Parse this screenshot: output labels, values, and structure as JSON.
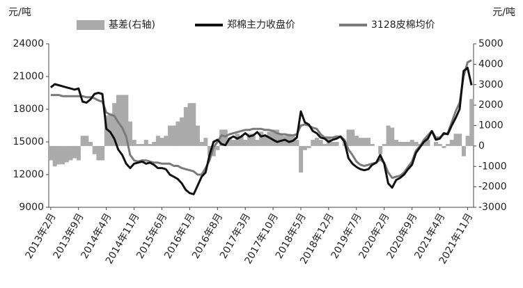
{
  "chart_data": {
    "type": "combo",
    "y_label": "元/吨",
    "y2_label": "元/吨",
    "categories": [
      "2013年2月",
      null,
      null,
      null,
      null,
      null,
      null,
      "2013年9月",
      null,
      null,
      null,
      null,
      null,
      null,
      "2014年4月",
      null,
      null,
      null,
      null,
      null,
      null,
      "2014年11月",
      null,
      null,
      null,
      null,
      null,
      null,
      "2015年6月",
      null,
      null,
      null,
      null,
      null,
      null,
      "2016年1月",
      null,
      null,
      null,
      null,
      null,
      null,
      "2016年8月",
      null,
      null,
      null,
      null,
      null,
      null,
      "2017年3月",
      null,
      null,
      null,
      null,
      null,
      null,
      "2017年10月",
      null,
      null,
      null,
      null,
      null,
      null,
      "2018年5月",
      null,
      null,
      null,
      null,
      null,
      null,
      "2018年12月",
      null,
      null,
      null,
      null,
      null,
      null,
      "2019年7月",
      null,
      null,
      null,
      null,
      null,
      null,
      "2020年2月",
      null,
      null,
      null,
      null,
      null,
      null,
      "2020年9月",
      null,
      null,
      null,
      null,
      null,
      null,
      "2021年4月",
      null,
      null,
      null,
      null,
      null,
      null,
      "2021年11月",
      null
    ],
    "series": [
      {
        "name": "基差(右轴)",
        "type": "bar",
        "axis": "y2",
        "color": "#ababab",
        "values": [
          -700,
          -1000,
          -900,
          -900,
          -800,
          -700,
          -600,
          -700,
          500,
          500,
          200,
          -400,
          -700,
          -700,
          1500,
          1600,
          2100,
          2500,
          2500,
          2500,
          1200,
          300,
          100,
          100,
          300,
          100,
          200,
          500,
          400,
          500,
          1000,
          1000,
          1200,
          1400,
          1900,
          2100,
          2100,
          1000,
          200,
          400,
          -500,
          -500,
          -200,
          800,
          800,
          400,
          300,
          600,
          500,
          300,
          600,
          600,
          300,
          700,
          500,
          700,
          800,
          800,
          600,
          500,
          600,
          500,
          300,
          -1300,
          -200,
          -100,
          300,
          400,
          300,
          100,
          400,
          200,
          200,
          0,
          200,
          800,
          800,
          500,
          400,
          400,
          400,
          100,
          0,
          -400,
          100,
          1000,
          900,
          300,
          200,
          200,
          200,
          300,
          200,
          100,
          200,
          300,
          0,
          200,
          100,
          -100,
          100,
          300,
          600,
          600,
          -500,
          500,
          2300
        ]
      },
      {
        "name": "郑棉主力收盘价",
        "type": "line",
        "color": "#111111",
        "values": [
          20000,
          20300,
          20200,
          20100,
          20000,
          19900,
          19800,
          19900,
          18700,
          18600,
          18900,
          19400,
          19500,
          19400,
          16200,
          15900,
          15300,
          14300,
          13800,
          13000,
          12600,
          13000,
          13100,
          13200,
          13000,
          13100,
          12900,
          12600,
          12600,
          12500,
          12000,
          11800,
          11600,
          11200,
          10600,
          10300,
          10200,
          11000,
          11800,
          12200,
          13800,
          15000,
          15200,
          14800,
          14700,
          15300,
          15500,
          15300,
          15500,
          15800,
          15500,
          15600,
          15900,
          15500,
          15600,
          15400,
          15200,
          15000,
          15100,
          15200,
          15000,
          15100,
          15400,
          17800,
          16800,
          16600,
          16000,
          15800,
          15400,
          15300,
          15000,
          15200,
          15300,
          15500,
          15000,
          13500,
          13000,
          12700,
          12500,
          12400,
          12500,
          12900,
          13100,
          13800,
          13000,
          11200,
          10800,
          11500,
          11700,
          12000,
          12500,
          12900,
          14000,
          14500,
          15000,
          15300,
          16000,
          15200,
          15300,
          15800,
          15700,
          16500,
          17200,
          18000,
          21500,
          21800,
          20200
        ]
      },
      {
        "name": "3128皮棉均价",
        "type": "line",
        "color": "#7a7a7a",
        "values": [
          19300,
          19300,
          19300,
          19200,
          19200,
          19200,
          19200,
          19200,
          19200,
          19100,
          19100,
          19000,
          18800,
          18700,
          17700,
          17500,
          17400,
          16800,
          16300,
          15500,
          13800,
          13300,
          13200,
          13300,
          13300,
          13200,
          13100,
          13100,
          13000,
          13000,
          13000,
          12800,
          12800,
          12600,
          12500,
          12400,
          12300,
          12000,
          12000,
          12600,
          13300,
          14500,
          15000,
          15600,
          15500,
          15700,
          15800,
          15900,
          16000,
          16100,
          16100,
          16200,
          16200,
          16200,
          16100,
          16100,
          16000,
          15800,
          15700,
          15700,
          15600,
          15600,
          15700,
          16500,
          16600,
          16500,
          16300,
          16200,
          15700,
          15400,
          15400,
          15400,
          15500,
          15500,
          15200,
          14300,
          13800,
          13200,
          12900,
          12800,
          12900,
          13000,
          13100,
          13400,
          13100,
          12200,
          11700,
          11800,
          11900,
          12200,
          12700,
          13200,
          14200,
          14600,
          15200,
          15600,
          16000,
          15400,
          15400,
          15700,
          15800,
          16800,
          17800,
          18600,
          21000,
          22300,
          22500
        ]
      }
    ],
    "ylim": [
      9000,
      24000
    ],
    "yticks": [
      9000,
      12000,
      15000,
      18000,
      21000,
      24000
    ],
    "y2lim": [
      -3000,
      5000
    ],
    "y2ticks": [
      -3000,
      -2000,
      -1000,
      0,
      1000,
      2000,
      3000,
      4000,
      5000
    ],
    "grid": false
  }
}
